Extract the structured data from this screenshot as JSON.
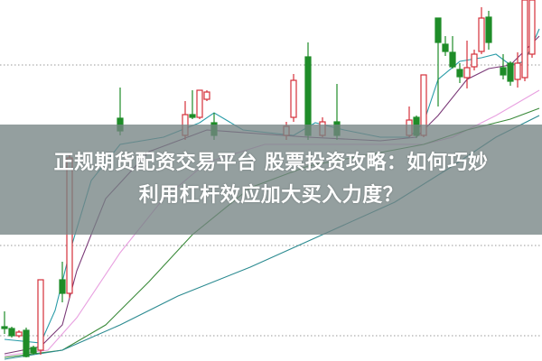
{
  "title": {
    "line1": "正规期货配资交易平台 股票投资攻略：如何巧妙",
    "line2": "利用杠杆效应加大买入力度？"
  },
  "chart_data": {
    "type": "candlestick",
    "colors": {
      "up": "#d4303a",
      "down": "#1e8c28",
      "banner": "#768484"
    },
    "gridlines": [
      82,
      32,
      7
    ],
    "ylim": [
      0,
      100
    ],
    "xlim": [
      0,
      74
    ],
    "candles": [
      [
        0,
        9.5,
        13.75,
        7.5,
        9
      ],
      [
        1,
        9,
        9.5,
        6.5,
        7
      ],
      [
        2,
        7,
        8.5,
        6.5,
        8
      ],
      [
        3,
        8.5,
        9.25,
        1,
        1.25
      ],
      [
        4,
        3.75,
        4.25,
        1.75,
        2.25
      ],
      [
        5,
        3,
        22.5,
        1.75,
        22.5
      ],
      [
        8,
        22.5,
        27.5,
        16.25,
        18.75
      ],
      [
        9,
        18.75,
        57.5,
        17.5,
        56.25
      ],
      [
        16,
        67.25,
        75.75,
        62.5,
        63.75
      ],
      [
        25,
        62.5,
        72,
        61.25,
        68.25
      ],
      [
        26,
        68.25,
        75,
        67,
        67.5
      ],
      [
        27,
        67.5,
        75,
        67,
        75
      ],
      [
        28,
        72.5,
        75,
        72,
        74.5
      ],
      [
        29,
        66,
        68.75,
        61.25,
        62.5
      ],
      [
        39,
        62.5,
        66.25,
        61.25,
        65
      ],
      [
        40,
        67.5,
        79.5,
        66.25,
        77.75
      ],
      [
        42,
        84.25,
        88.25,
        61.25,
        62.5
      ],
      [
        44,
        62.5,
        67.5,
        62,
        66.25
      ],
      [
        46,
        66.25,
        76.75,
        61.25,
        62.5
      ],
      [
        56,
        62.5,
        70.5,
        62,
        66.75
      ],
      [
        57,
        67.5,
        68,
        61.75,
        62.5
      ],
      [
        58,
        62.5,
        79.25,
        62,
        79.25
      ],
      [
        60,
        95,
        95,
        70.5,
        88.25
      ],
      [
        61,
        87.75,
        90,
        84.5,
        85.75
      ],
      [
        62,
        85.5,
        90,
        81,
        81.5
      ],
      [
        63,
        80.75,
        82.5,
        77,
        78.75
      ],
      [
        64,
        78.5,
        88.75,
        75.5,
        81.25
      ],
      [
        65,
        81.5,
        86.25,
        80.5,
        85
      ],
      [
        66,
        85.75,
        98,
        85,
        95
      ],
      [
        67,
        95.25,
        97,
        86.25,
        88.25
      ],
      [
        69,
        81.25,
        85,
        78,
        79.25
      ],
      [
        70,
        82.5,
        83,
        76.25,
        77.5
      ],
      [
        71,
        78,
        85.5,
        75.75,
        82.5
      ],
      [
        72,
        78.5,
        100,
        77.5,
        100
      ],
      [
        73,
        85,
        100,
        84,
        100
      ]
    ],
    "moving_averages": [
      {
        "color": "#2a9ca8",
        "points": [
          [
            0,
            6
          ],
          [
            5,
            5
          ],
          [
            7,
            14
          ],
          [
            9,
            30
          ],
          [
            12,
            50
          ],
          [
            16,
            60
          ],
          [
            22,
            62
          ],
          [
            27,
            66
          ],
          [
            29,
            68.75
          ],
          [
            33,
            64
          ],
          [
            40,
            62.5
          ],
          [
            43,
            66
          ],
          [
            47,
            64
          ],
          [
            52,
            62
          ],
          [
            56,
            62
          ],
          [
            58,
            66
          ],
          [
            60,
            78
          ],
          [
            63,
            83
          ],
          [
            66,
            84
          ],
          [
            68,
            85
          ],
          [
            70,
            82
          ],
          [
            72,
            83
          ],
          [
            74,
            92
          ]
        ]
      },
      {
        "color": "#7b3a78",
        "points": [
          [
            0,
            2
          ],
          [
            5,
            4
          ],
          [
            8,
            10
          ],
          [
            10,
            25
          ],
          [
            14,
            45
          ],
          [
            20,
            58
          ],
          [
            28,
            64
          ],
          [
            35,
            63
          ],
          [
            42,
            62
          ],
          [
            52,
            61
          ],
          [
            57,
            62
          ],
          [
            60,
            68
          ],
          [
            64,
            78
          ],
          [
            67,
            81
          ],
          [
            70,
            82
          ],
          [
            74,
            90
          ]
        ]
      },
      {
        "color": "#e8a0e0",
        "points": [
          [
            0,
            1.5
          ],
          [
            6,
            3
          ],
          [
            10,
            12
          ],
          [
            16,
            30
          ],
          [
            22,
            45
          ],
          [
            28,
            55
          ],
          [
            36,
            60
          ],
          [
            44,
            60
          ],
          [
            52,
            60
          ],
          [
            58,
            60
          ],
          [
            62,
            62
          ],
          [
            68,
            68
          ],
          [
            74,
            75
          ]
        ]
      },
      {
        "color": "#3a8a3a",
        "points": [
          [
            0,
            1
          ],
          [
            8,
            3
          ],
          [
            14,
            10
          ],
          [
            20,
            22
          ],
          [
            26,
            35
          ],
          [
            34,
            48
          ],
          [
            42,
            54
          ],
          [
            50,
            57
          ],
          [
            58,
            60
          ],
          [
            64,
            64
          ],
          [
            70,
            67
          ],
          [
            74,
            70
          ]
        ]
      },
      {
        "color": "#2a8a90",
        "points": [
          [
            0,
            0.5
          ],
          [
            8,
            3
          ],
          [
            16,
            10
          ],
          [
            24,
            18
          ],
          [
            34,
            26
          ],
          [
            44,
            35
          ],
          [
            54,
            44
          ],
          [
            62,
            54
          ],
          [
            68,
            62
          ],
          [
            74,
            68
          ]
        ]
      }
    ]
  }
}
